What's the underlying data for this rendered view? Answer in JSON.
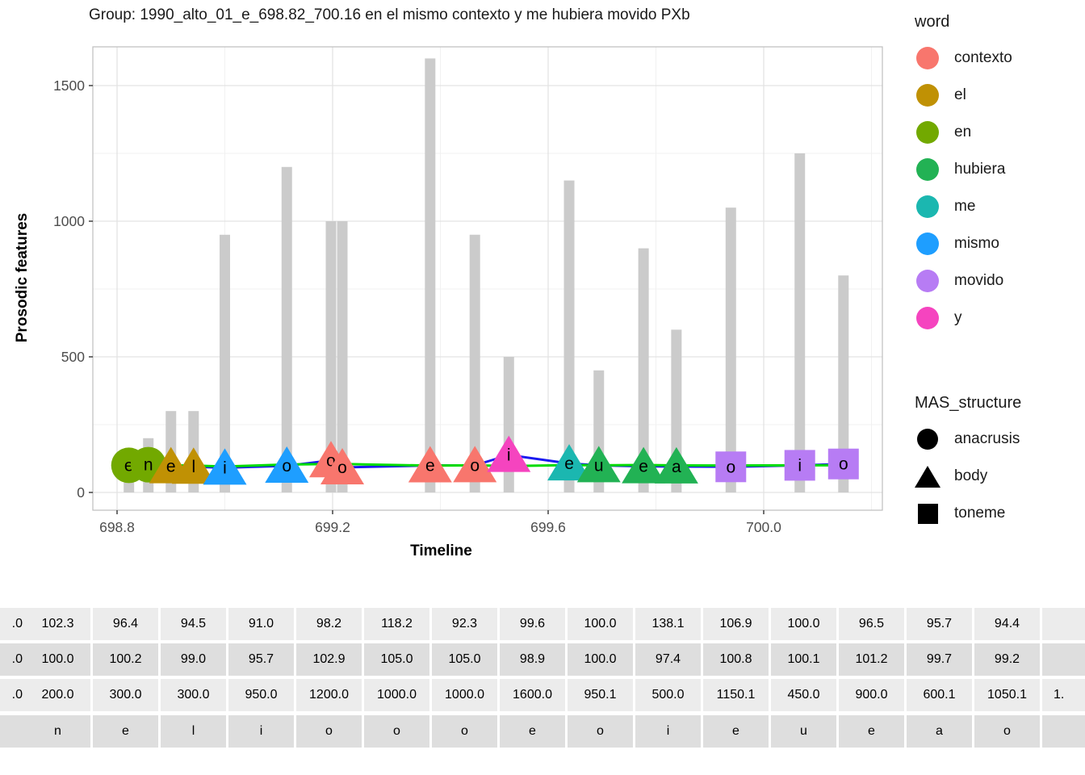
{
  "title": "Group: 1990_alto_01_e_698.82_700.16 en el mismo contexto y me hubiera movido PXb",
  "chart_data": {
    "type": "mixed-bar-line-scatter",
    "title": "Group: 1990_alto_01_e_698.82_700.16 en el mismo contexto y me hubiera movido PXb",
    "xlabel": "Timeline",
    "ylabel": "Prosodic features",
    "x_tick_labels": [
      "698.8",
      "699.2",
      "699.6",
      "700.0"
    ],
    "x_ticks": [
      698.8,
      699.2,
      699.6,
      700.0
    ],
    "x_minor_ticks": [
      699.0,
      699.4,
      699.8,
      700.2
    ],
    "y_tick_labels": [
      "0",
      "500",
      "1000",
      "1500"
    ],
    "y_ticks": [
      0,
      500,
      1000,
      1500
    ],
    "y_minor_ticks": [
      250,
      750,
      1250
    ],
    "xlim": [
      698.755,
      700.22
    ],
    "ylim": [
      0,
      1640
    ],
    "grid": true,
    "bar_color": "#CBCBCB",
    "line_blue_color": "#1A1AF0",
    "line_green_color": "#00DB00",
    "points": [
      {
        "letter": "e",
        "word": "en",
        "structure": "anacrusis",
        "t": 698.822,
        "blue": 100.0,
        "green": 100.0,
        "bar": 100.0
      },
      {
        "letter": "n",
        "word": "en",
        "structure": "anacrusis",
        "t": 698.858,
        "blue": 102.3,
        "green": 100.0,
        "bar": 200.0
      },
      {
        "letter": "e",
        "word": "el",
        "structure": "body",
        "t": 698.9,
        "blue": 96.4,
        "green": 100.2,
        "bar": 300.0
      },
      {
        "letter": "l",
        "word": "el",
        "structure": "body",
        "t": 698.942,
        "blue": 94.5,
        "green": 99.0,
        "bar": 300.0
      },
      {
        "letter": "i",
        "word": "mismo",
        "structure": "body",
        "t": 699.0,
        "blue": 91.0,
        "green": 95.7,
        "bar": 950.0
      },
      {
        "letter": "o",
        "word": "mismo",
        "structure": "body",
        "t": 699.115,
        "blue": 98.2,
        "green": 102.9,
        "bar": 1200.0
      },
      {
        "letter": "o",
        "word": "contexto",
        "structure": "body",
        "t": 699.197,
        "blue": 118.2,
        "green": 105.0,
        "bar": 1000.0
      },
      {
        "letter": "o",
        "word": "contexto",
        "structure": "body",
        "t": 699.218,
        "blue": 92.3,
        "green": 105.0,
        "bar": 1000.0
      },
      {
        "letter": "e",
        "word": "contexto",
        "structure": "body",
        "t": 699.381,
        "blue": 99.6,
        "green": 98.9,
        "bar": 1600.0
      },
      {
        "letter": "o",
        "word": "contexto",
        "structure": "body",
        "t": 699.464,
        "blue": 100.0,
        "green": 100.0,
        "bar": 950.1
      },
      {
        "letter": "i",
        "word": "y",
        "structure": "body",
        "t": 699.527,
        "blue": 138.1,
        "green": 97.4,
        "bar": 500.0
      },
      {
        "letter": "e",
        "word": "me",
        "structure": "body",
        "t": 699.639,
        "blue": 106.9,
        "green": 100.8,
        "bar": 1150.1
      },
      {
        "letter": "u",
        "word": "hubiera",
        "structure": "body",
        "t": 699.694,
        "blue": 100.0,
        "green": 100.1,
        "bar": 450.0
      },
      {
        "letter": "e",
        "word": "hubiera",
        "structure": "body",
        "t": 699.777,
        "blue": 96.5,
        "green": 101.2,
        "bar": 900.0
      },
      {
        "letter": "a",
        "word": "hubiera",
        "structure": "body",
        "t": 699.838,
        "blue": 95.7,
        "green": 99.7,
        "bar": 600.1
      },
      {
        "letter": "o",
        "word": "movido",
        "structure": "toneme",
        "t": 699.939,
        "blue": 94.4,
        "green": 99.2,
        "bar": 1050.1
      },
      {
        "letter": "i",
        "word": "movido",
        "structure": "toneme",
        "t": 700.067,
        "blue": 100.0,
        "green": 100.0,
        "bar": 1250.1
      },
      {
        "letter": "o",
        "word": "movido",
        "structure": "toneme",
        "t": 700.148,
        "blue": 105.0,
        "green": 100.0,
        "bar": 800.0
      }
    ]
  },
  "legend_word": {
    "title": "word",
    "items": [
      {
        "label": "contexto",
        "color": "#F8766D"
      },
      {
        "label": "el",
        "color": "#C09104"
      },
      {
        "label": "en",
        "color": "#72A900"
      },
      {
        "label": "hubiera",
        "color": "#22B254"
      },
      {
        "label": "me",
        "color": "#1BB7B0"
      },
      {
        "label": "mismo",
        "color": "#1E9EFF"
      },
      {
        "label": "movido",
        "color": "#B77CF4"
      },
      {
        "label": "y",
        "color": "#F544BF"
      }
    ]
  },
  "legend_mas": {
    "title": "MAS_structure",
    "items": [
      {
        "label": "anacrusis",
        "shape": "circle"
      },
      {
        "label": "body",
        "shape": "triangle"
      },
      {
        "label": "toneme",
        "shape": "square"
      }
    ]
  },
  "table": {
    "rows": [
      {
        "name": "values-row-1",
        "cells": [
          ".0",
          "102.3",
          "96.4",
          "94.5",
          "91.0",
          "98.2",
          "118.2",
          "92.3",
          "99.6",
          "100.0",
          "138.1",
          "106.9",
          "100.0",
          "96.5",
          "95.7",
          "94.4",
          ""
        ]
      },
      {
        "name": "values-row-2",
        "cells": [
          ".0",
          "100.0",
          "100.2",
          "99.0",
          "95.7",
          "102.9",
          "105.0",
          "105.0",
          "98.9",
          "100.0",
          "97.4",
          "100.8",
          "100.1",
          "101.2",
          "99.7",
          "99.2",
          ""
        ]
      },
      {
        "name": "values-row-3",
        "cells": [
          ".0",
          "200.0",
          "300.0",
          "300.0",
          "950.0",
          "1200.0",
          "1000.0",
          "1000.0",
          "1600.0",
          "950.1",
          "500.0",
          "1150.1",
          "450.0",
          "900.0",
          "600.1",
          "1050.1",
          "1."
        ]
      },
      {
        "name": "letters-row",
        "cells": [
          "",
          "n",
          "e",
          "l",
          "i",
          "o",
          "o",
          "o",
          "e",
          "o",
          "i",
          "e",
          "u",
          "e",
          "a",
          "o",
          ""
        ]
      }
    ]
  }
}
